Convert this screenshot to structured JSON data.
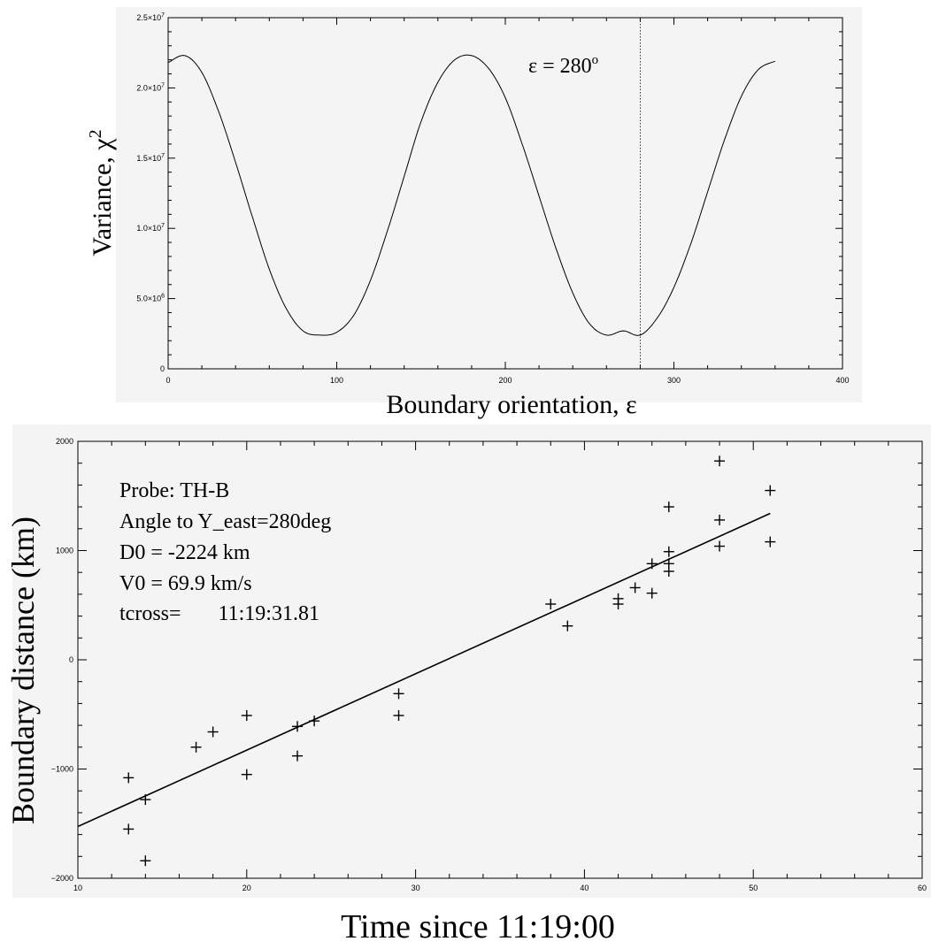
{
  "chart_data": [
    {
      "type": "line",
      "xlabel": "Boundary orientation, ε",
      "ylabel": "Variance, χ",
      "ylabel_sup": "2",
      "xlim": [
        0,
        400
      ],
      "ylim": [
        0,
        25000000
      ],
      "x_ticks": [
        0,
        100,
        200,
        300,
        400
      ],
      "x_tick_labels": [
        "0",
        "100",
        "200",
        "300",
        "400"
      ],
      "y_ticks": [
        0,
        5000000,
        10000000,
        15000000,
        20000000,
        25000000
      ],
      "y_tick_labels": [
        {
          "base": "0",
          "exp": ""
        },
        {
          "base": "5.0×10",
          "exp": "6"
        },
        {
          "base": "1.0×10",
          "exp": "7"
        },
        {
          "base": "1.5×10",
          "exp": "7"
        },
        {
          "base": "2.0×10",
          "exp": "7"
        },
        {
          "base": "2.5×10",
          "exp": "7"
        }
      ],
      "series": [
        {
          "x": [
            0,
            10,
            20,
            30,
            40,
            50,
            60,
            70,
            80,
            90,
            100,
            110,
            120,
            130,
            140,
            150,
            160,
            170,
            180,
            190,
            200,
            210,
            220,
            230,
            240,
            250,
            260,
            270,
            280,
            290,
            300,
            310,
            320,
            330,
            340,
            350,
            360
          ],
          "y": [
            21800000,
            22300000,
            21100000,
            18300000,
            14700000,
            10800000,
            7100000,
            4300000,
            2700000,
            2400000,
            2600000,
            3800000,
            6300000,
            9800000,
            13700000,
            17600000,
            20400000,
            22000000,
            22300000,
            21400000,
            19300000,
            16000000,
            12300000,
            8600000,
            5400000,
            3200000,
            2400000,
            2700000,
            2400000,
            3600000,
            5800000,
            8900000,
            12600000,
            16300000,
            19400000,
            21300000,
            21900000
          ]
        }
      ],
      "vline_x": 280,
      "annotation": {
        "text": "ε = 280",
        "sup": "o"
      }
    },
    {
      "type": "scatter",
      "xlabel": "Time since 11:19:00",
      "ylabel": "Boundary distance (km)",
      "xlim": [
        10,
        60
      ],
      "ylim": [
        -2000,
        2000
      ],
      "x_ticks": [
        10,
        20,
        30,
        40,
        50,
        60
      ],
      "x_tick_labels": [
        "10",
        "20",
        "30",
        "40",
        "50",
        "60"
      ],
      "y_ticks": [
        -2000,
        -1000,
        0,
        1000,
        2000
      ],
      "y_tick_labels": [
        "−2000",
        "−1000",
        "0",
        "1000",
        "2000"
      ],
      "series": [
        {
          "x": [
            13,
            13,
            14,
            14,
            17,
            18,
            20,
            20,
            23,
            23,
            24,
            29,
            29,
            38,
            39,
            42,
            42,
            43,
            44,
            44,
            45,
            45,
            45,
            45,
            48,
            48,
            48,
            51,
            51
          ],
          "y": [
            -1080,
            -1550,
            -1280,
            -1840,
            -800,
            -660,
            -510,
            -1050,
            -610,
            -880,
            -560,
            -310,
            -510,
            510,
            310,
            560,
            510,
            660,
            610,
            880,
            1400,
            990,
            880,
            810,
            1820,
            1280,
            1040,
            1550,
            1080
          ]
        }
      ],
      "fit_line": {
        "x": [
          10,
          51
        ],
        "y": [
          -1526,
          1340
        ]
      },
      "info_lines": [
        "Probe: TH-B",
        "Angle to Y_east=280deg",
        "D0 = -2224 km",
        "V0 = 69.9 km/s",
        "tcross=       11:19:31.81"
      ]
    }
  ]
}
